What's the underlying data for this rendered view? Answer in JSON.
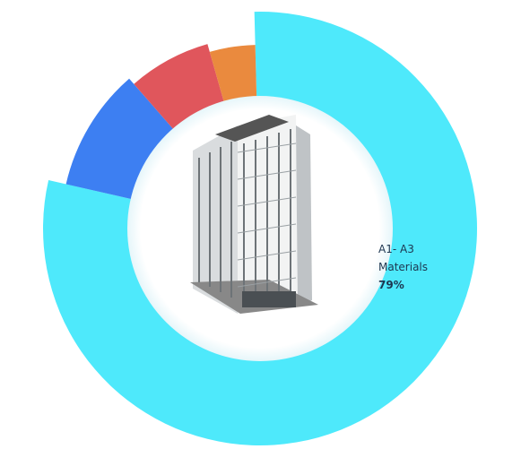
{
  "chart_data": {
    "type": "donut",
    "categories": [
      "A1- A3 Materials",
      null,
      null,
      null
    ],
    "values": [
      79,
      10,
      7,
      4
    ],
    "value_labels": [
      "79%",
      null,
      null,
      null
    ],
    "colors": [
      "#4ee9fb",
      "#3d7ff2",
      "#e0565c",
      "#ea8a3e"
    ]
  }
}
